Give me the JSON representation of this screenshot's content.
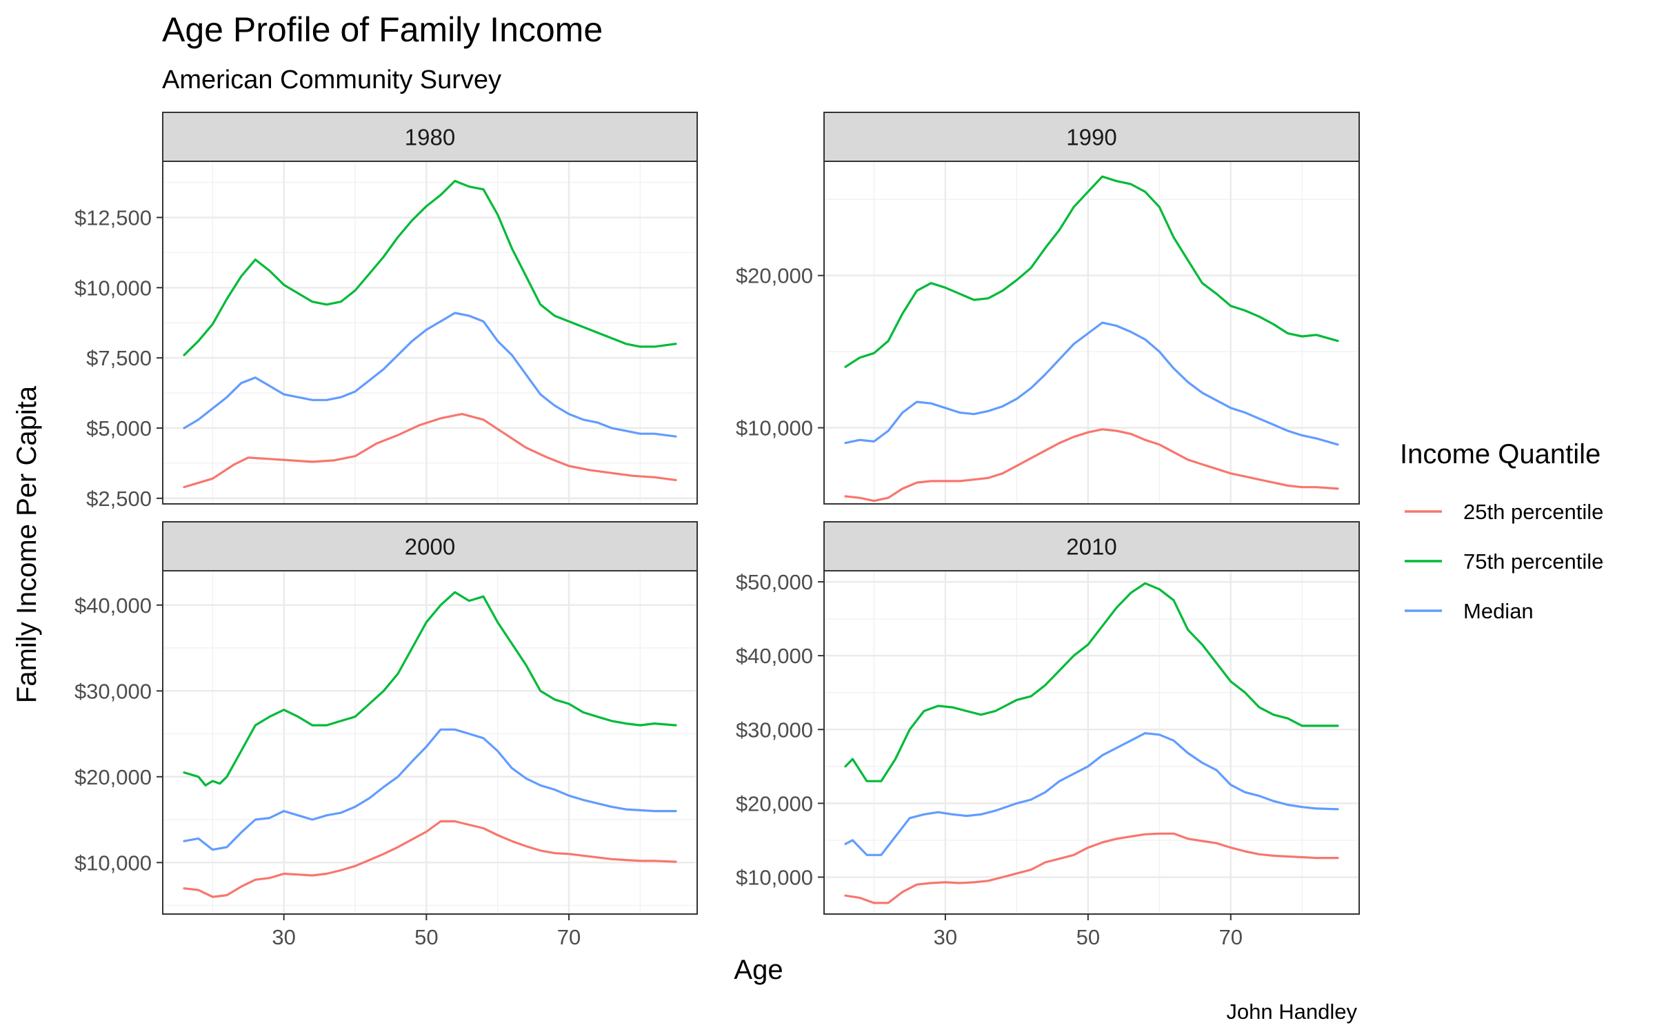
{
  "title": "Age Profile of Family Income",
  "subtitle": "American Community Survey",
  "caption": "John Handley",
  "x_axis_label": "Age",
  "y_axis_label": "Family Income Per Capita",
  "legend": {
    "title": "Income Quantile",
    "items": [
      {
        "label": "25th percentile",
        "color": "#F8766D"
      },
      {
        "label": "75th percentile",
        "color": "#00BA38"
      },
      {
        "label": "Median",
        "color": "#619CFF"
      }
    ]
  },
  "chart_data": {
    "type": "line",
    "x_ticks": [
      30,
      50,
      70
    ],
    "x_range": [
      13,
      88
    ],
    "panels": [
      {
        "strip": "1980",
        "ylim": [
          2300,
          14500
        ],
        "y_ticks": [
          2500,
          5000,
          7500,
          10000,
          12500
        ],
        "y_tick_labels": [
          "$2,500",
          "$5,000",
          "$7,500",
          "$10,000",
          "$12,500"
        ],
        "series": [
          {
            "name": "25th percentile",
            "color": "#F8766D",
            "x": [
              16,
              20,
              23,
              25,
              28,
              31,
              34,
              37,
              40,
              43,
              46,
              49,
              52,
              55,
              58,
              61,
              64,
              67,
              70,
              73,
              76,
              79,
              82,
              85
            ],
            "y": [
              2900,
              3200,
              3700,
              3950,
              3900,
              3850,
              3800,
              3850,
              4000,
              4450,
              4750,
              5100,
              5350,
              5500,
              5300,
              4800,
              4300,
              3950,
              3650,
              3500,
              3400,
              3300,
              3250,
              3150
            ]
          },
          {
            "name": "75th percentile",
            "color": "#00BA38",
            "x": [
              16,
              18,
              20,
              22,
              24,
              26,
              28,
              30,
              32,
              34,
              36,
              38,
              40,
              42,
              44,
              46,
              48,
              50,
              52,
              54,
              56,
              58,
              60,
              62,
              64,
              66,
              68,
              70,
              72,
              74,
              76,
              78,
              80,
              82,
              85
            ],
            "y": [
              7600,
              8100,
              8700,
              9600,
              10400,
              11000,
              10600,
              10100,
              9800,
              9500,
              9400,
              9500,
              9900,
              10500,
              11100,
              11800,
              12400,
              12900,
              13300,
              13800,
              13600,
              13500,
              12600,
              11400,
              10400,
              9400,
              9000,
              8800,
              8600,
              8400,
              8200,
              8000,
              7900,
              7900,
              8000
            ]
          },
          {
            "name": "Median",
            "color": "#619CFF",
            "x": [
              16,
              18,
              20,
              22,
              24,
              26,
              28,
              30,
              32,
              34,
              36,
              38,
              40,
              42,
              44,
              46,
              48,
              50,
              52,
              54,
              56,
              58,
              60,
              62,
              64,
              66,
              68,
              70,
              72,
              74,
              76,
              78,
              80,
              82,
              85
            ],
            "y": [
              5000,
              5300,
              5700,
              6100,
              6600,
              6800,
              6500,
              6200,
              6100,
              6000,
              6000,
              6100,
              6300,
              6700,
              7100,
              7600,
              8100,
              8500,
              8800,
              9100,
              9000,
              8800,
              8100,
              7600,
              6900,
              6200,
              5800,
              5500,
              5300,
              5200,
              5000,
              4900,
              4800,
              4800,
              4700
            ]
          }
        ]
      },
      {
        "strip": "1990",
        "ylim": [
          5000,
          27500
        ],
        "y_ticks": [
          10000,
          20000
        ],
        "y_tick_labels": [
          "$10,000",
          "$20,000"
        ],
        "series": [
          {
            "name": "25th percentile",
            "color": "#F8766D",
            "x": [
              16,
              18,
              20,
              22,
              24,
              26,
              28,
              30,
              32,
              34,
              36,
              38,
              40,
              42,
              44,
              46,
              48,
              50,
              52,
              54,
              56,
              58,
              60,
              62,
              64,
              66,
              68,
              70,
              72,
              74,
              76,
              78,
              80,
              82,
              85
            ],
            "y": [
              5500,
              5400,
              5200,
              5400,
              6000,
              6400,
              6500,
              6500,
              6500,
              6600,
              6700,
              7000,
              7500,
              8000,
              8500,
              9000,
              9400,
              9700,
              9900,
              9800,
              9600,
              9200,
              8900,
              8400,
              7900,
              7600,
              7300,
              7000,
              6800,
              6600,
              6400,
              6200,
              6100,
              6100,
              6000
            ]
          },
          {
            "name": "75th percentile",
            "color": "#00BA38",
            "x": [
              16,
              18,
              20,
              22,
              24,
              26,
              28,
              30,
              32,
              34,
              36,
              38,
              40,
              42,
              44,
              46,
              48,
              50,
              52,
              54,
              56,
              58,
              60,
              62,
              64,
              66,
              68,
              70,
              72,
              74,
              76,
              78,
              80,
              82,
              85
            ],
            "y": [
              14000,
              14600,
              14900,
              15700,
              17500,
              19000,
              19500,
              19200,
              18800,
              18400,
              18500,
              19000,
              19700,
              20500,
              21800,
              23000,
              24500,
              25500,
              26500,
              26200,
              26000,
              25500,
              24500,
              22500,
              21000,
              19500,
              18800,
              18000,
              17700,
              17300,
              16800,
              16200,
              16000,
              16100,
              15700
            ]
          },
          {
            "name": "Median",
            "color": "#619CFF",
            "x": [
              16,
              18,
              20,
              22,
              24,
              26,
              28,
              30,
              32,
              34,
              36,
              38,
              40,
              42,
              44,
              46,
              48,
              50,
              52,
              54,
              56,
              58,
              60,
              62,
              64,
              66,
              68,
              70,
              72,
              74,
              76,
              78,
              80,
              82,
              85
            ],
            "y": [
              9000,
              9200,
              9100,
              9800,
              11000,
              11700,
              11600,
              11300,
              11000,
              10900,
              11100,
              11400,
              11900,
              12600,
              13500,
              14500,
              15500,
              16200,
              16900,
              16700,
              16300,
              15800,
              15000,
              13900,
              13000,
              12300,
              11800,
              11300,
              11000,
              10600,
              10200,
              9800,
              9500,
              9300,
              8900
            ]
          }
        ]
      },
      {
        "strip": "2000",
        "ylim": [
          4000,
          44000
        ],
        "y_ticks": [
          10000,
          20000,
          30000,
          40000
        ],
        "y_tick_labels": [
          "$10,000",
          "$20,000",
          "$30,000",
          "$40,000"
        ],
        "series": [
          {
            "name": "25th percentile",
            "color": "#F8766D",
            "x": [
              16,
              18,
              20,
              22,
              24,
              26,
              28,
              30,
              32,
              34,
              36,
              38,
              40,
              42,
              44,
              46,
              48,
              50,
              52,
              54,
              56,
              58,
              60,
              62,
              64,
              66,
              68,
              70,
              72,
              74,
              76,
              78,
              80,
              82,
              85
            ],
            "y": [
              7000,
              6800,
              6000,
              6200,
              7200,
              8000,
              8200,
              8700,
              8600,
              8500,
              8700,
              9100,
              9600,
              10300,
              11000,
              11800,
              12700,
              13600,
              14800,
              14800,
              14400,
              14000,
              13200,
              12500,
              11900,
              11400,
              11100,
              11000,
              10800,
              10600,
              10400,
              10300,
              10200,
              10200,
              10100
            ]
          },
          {
            "name": "75th percentile",
            "color": "#00BA38",
            "x": [
              16,
              18,
              19,
              20,
              21,
              22,
              24,
              26,
              28,
              30,
              32,
              34,
              36,
              38,
              40,
              42,
              44,
              46,
              48,
              50,
              52,
              54,
              56,
              58,
              60,
              62,
              64,
              66,
              68,
              70,
              72,
              74,
              76,
              78,
              80,
              82,
              85
            ],
            "y": [
              20500,
              20000,
              19000,
              19500,
              19200,
              20000,
              23000,
              26000,
              27000,
              27800,
              27000,
              26000,
              26000,
              26500,
              27000,
              28500,
              30000,
              32000,
              35000,
              38000,
              40000,
              41500,
              40500,
              41000,
              38000,
              35500,
              33000,
              30000,
              29000,
              28500,
              27500,
              27000,
              26500,
              26200,
              26000,
              26200,
              26000
            ]
          },
          {
            "name": "Median",
            "color": "#619CFF",
            "x": [
              16,
              18,
              20,
              22,
              24,
              26,
              28,
              30,
              32,
              34,
              36,
              38,
              40,
              42,
              44,
              46,
              48,
              50,
              52,
              54,
              56,
              58,
              60,
              62,
              64,
              66,
              68,
              70,
              72,
              74,
              76,
              78,
              80,
              82,
              85
            ],
            "y": [
              12500,
              12800,
              11500,
              11800,
              13500,
              15000,
              15200,
              16000,
              15500,
              15000,
              15500,
              15800,
              16500,
              17500,
              18800,
              20000,
              21800,
              23500,
              25500,
              25500,
              25000,
              24500,
              23000,
              21000,
              19800,
              19000,
              18500,
              17800,
              17300,
              16900,
              16500,
              16200,
              16100,
              16000,
              16000
            ]
          }
        ]
      },
      {
        "strip": "2010",
        "ylim": [
          5000,
          51500
        ],
        "y_ticks": [
          10000,
          20000,
          30000,
          40000,
          50000
        ],
        "y_tick_labels": [
          "$10,000",
          "$20,000",
          "$30,000",
          "$40,000",
          "$50,000"
        ],
        "series": [
          {
            "name": "25th percentile",
            "color": "#F8766D",
            "x": [
              16,
              18,
              20,
              22,
              24,
              26,
              28,
              30,
              32,
              34,
              36,
              38,
              40,
              42,
              44,
              46,
              48,
              50,
              52,
              54,
              56,
              58,
              60,
              62,
              64,
              66,
              68,
              70,
              72,
              74,
              76,
              78,
              80,
              82,
              85
            ],
            "y": [
              7500,
              7200,
              6500,
              6500,
              8000,
              9000,
              9200,
              9300,
              9200,
              9300,
              9500,
              10000,
              10500,
              11000,
              12000,
              12500,
              13000,
              14000,
              14700,
              15200,
              15500,
              15800,
              15900,
              15900,
              15200,
              14900,
              14600,
              14000,
              13500,
              13100,
              12900,
              12800,
              12700,
              12600,
              12600
            ]
          },
          {
            "name": "75th percentile",
            "color": "#00BA38",
            "x": [
              16,
              17,
              19,
              21,
              23,
              25,
              27,
              29,
              31,
              33,
              35,
              37,
              40,
              42,
              44,
              46,
              48,
              50,
              52,
              54,
              56,
              58,
              60,
              62,
              64,
              66,
              68,
              70,
              72,
              74,
              76,
              78,
              80,
              82,
              85
            ],
            "y": [
              25000,
              26000,
              23000,
              23000,
              26000,
              30000,
              32500,
              33200,
              33000,
              32500,
              32000,
              32500,
              34000,
              34500,
              36000,
              38000,
              40000,
              41500,
              44000,
              46500,
              48500,
              49800,
              49000,
              47500,
              43500,
              41500,
              39000,
              36500,
              35000,
              33000,
              32000,
              31500,
              30500,
              30500,
              30500
            ]
          },
          {
            "name": "Median",
            "color": "#619CFF",
            "x": [
              16,
              17,
              19,
              21,
              23,
              25,
              27,
              29,
              31,
              33,
              35,
              37,
              40,
              42,
              44,
              46,
              48,
              50,
              52,
              54,
              56,
              58,
              60,
              62,
              64,
              66,
              68,
              70,
              72,
              74,
              76,
              78,
              80,
              82,
              85
            ],
            "y": [
              14500,
              15000,
              13000,
              13000,
              15500,
              18000,
              18500,
              18800,
              18500,
              18300,
              18500,
              19000,
              20000,
              20500,
              21500,
              23000,
              24000,
              25000,
              26500,
              27500,
              28500,
              29500,
              29300,
              28500,
              26800,
              25500,
              24500,
              22500,
              21500,
              21000,
              20300,
              19800,
              19500,
              19300,
              19200
            ]
          }
        ]
      }
    ]
  }
}
